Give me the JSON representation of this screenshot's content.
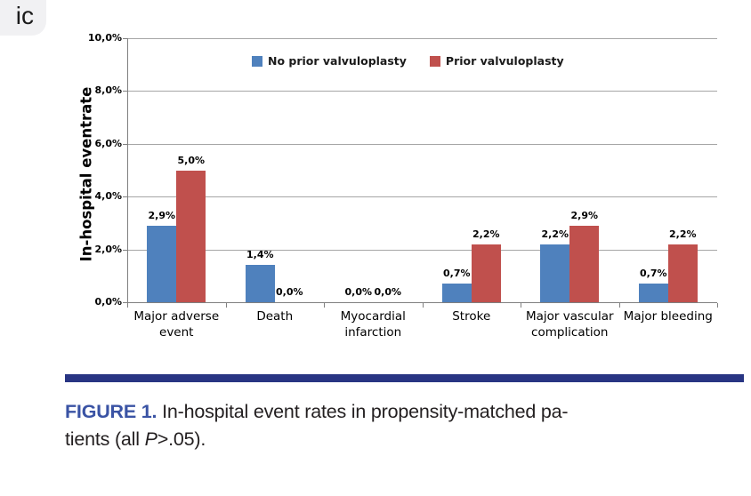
{
  "corner_badge": {
    "text": "ic"
  },
  "chart_data": {
    "type": "bar",
    "title": "",
    "xlabel": "",
    "ylabel": "In-hospital eventrate",
    "ylim": [
      0,
      10
    ],
    "ytick_step": 2,
    "ytick_labels": [
      "0,0%",
      "2,0%",
      "4,0%",
      "6,0%",
      "8,0%",
      "10,0%"
    ],
    "grid": true,
    "legend_position": "top-center",
    "categories": [
      "Major adverse event",
      "Death",
      "Myocardial infarction",
      "Stroke",
      "Major vascular complication",
      "Major bleeding"
    ],
    "series": [
      {
        "name": "No prior valvuloplasty",
        "color": "#4F81BD",
        "values": [
          2.9,
          1.4,
          0.0,
          0.7,
          2.2,
          0.7
        ],
        "labels": [
          "2,9%",
          "1,4%",
          "0,0%",
          "0,7%",
          "2,2%",
          "0,7%"
        ]
      },
      {
        "name": "Prior valvuloplasty",
        "color": "#C0504D",
        "values": [
          5.0,
          0.0,
          0.0,
          2.2,
          2.9,
          2.2
        ],
        "labels": [
          "5,0%",
          "0,0%",
          "0,0%",
          "2,2%",
          "2,9%",
          "2,2%"
        ]
      }
    ]
  },
  "figure_caption": {
    "label": "FIGURE 1.",
    "line1": " In-hospital event rates in propensity-matched pa-",
    "line2_pre": "tients (all ",
    "p_symbol": "P",
    "line2_post": ">.05)."
  }
}
